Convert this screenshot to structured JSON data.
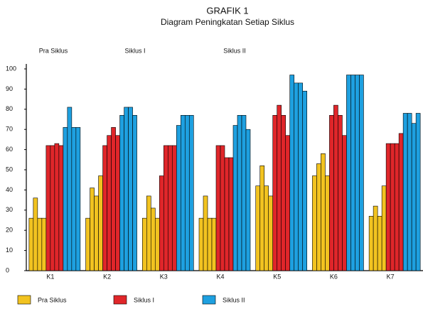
{
  "chart_data": {
    "type": "grouped-bar",
    "title": "GRAFIK  1",
    "subtitle": "Diagram Peningkatan Setiap Siklus",
    "annotations": [
      "Pra Siklus",
      "Siklus I",
      "Siklus II"
    ],
    "categories": [
      "K1",
      "K2",
      "K3",
      "K4",
      "K5",
      "K6",
      "K7"
    ],
    "series": [
      {
        "name": "Pra Siklus",
        "color": "#f2c320",
        "values": [
          [
            26,
            36,
            26,
            26
          ],
          [
            26,
            41,
            37,
            47
          ],
          [
            26,
            37,
            31,
            26
          ],
          [
            26,
            37,
            26,
            26
          ],
          [
            42,
            52,
            42,
            37
          ],
          [
            47,
            53,
            58,
            47
          ],
          [
            27,
            32,
            27,
            42
          ]
        ]
      },
      {
        "name": "Siklus I",
        "color": "#e0262a",
        "values": [
          [
            62,
            62,
            63,
            62
          ],
          [
            62,
            67,
            71,
            67
          ],
          [
            47,
            62,
            62,
            62
          ],
          [
            62,
            62,
            56,
            56
          ],
          [
            77,
            82,
            77,
            67
          ],
          [
            77,
            82,
            77,
            67
          ],
          [
            63,
            63,
            63,
            68
          ]
        ]
      },
      {
        "name": "Siklus II",
        "color": "#1ea0e0",
        "values": [
          [
            71,
            81,
            71,
            71
          ],
          [
            77,
            81,
            81,
            77
          ],
          [
            72,
            77,
            77,
            77
          ],
          [
            72,
            77,
            77,
            70
          ],
          [
            97,
            93,
            93,
            89
          ],
          [
            97,
            97,
            97,
            97
          ],
          [
            78,
            78,
            73,
            78
          ]
        ]
      }
    ],
    "ylim": [
      0,
      100
    ],
    "yticks": [
      0,
      10,
      20,
      30,
      40,
      50,
      60,
      70,
      80,
      90,
      100
    ],
    "grid": false,
    "legend": "bottom"
  }
}
